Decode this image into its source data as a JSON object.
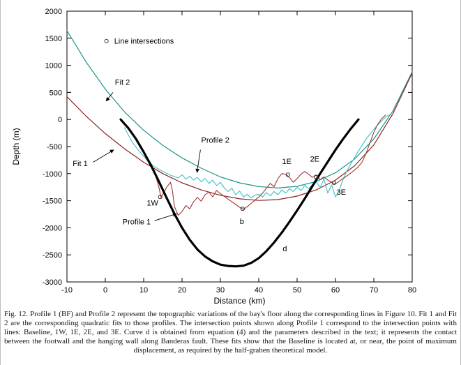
{
  "figure": {
    "caption": "Fig. 12. Profile 1 (BF) and Profile 2 represent the topographic variations of the bay's floor along the corresponding lines in Figure 10. Fit 1 and Fit 2 are the corresponding quadratic fits to those profiles. The intersection points shown along Profile 1 correspond to the intersection points with lines: Baseline, 1W, 1E, 2E, and 3E. Curve d is obtained from equation (4) and the parameters described in the text; it represents the contact between the footwall and the hanging wall along Banderas fault. These fits show that the Baseline is located at, or near, the point of maximum displacement, as required by the half-graben theoretical model."
  },
  "chart_data": {
    "type": "line",
    "title": "",
    "xlabel": "Distance (km)",
    "ylabel": "Depth (m)",
    "xlim": [
      -10,
      80
    ],
    "ylim": [
      -3000,
      2000
    ],
    "xticks": [
      -10,
      0,
      10,
      20,
      30,
      40,
      50,
      60,
      70,
      80
    ],
    "yticks": [
      -3000,
      -2500,
      -2000,
      -1500,
      -1000,
      -500,
      0,
      500,
      1000,
      1500,
      2000
    ],
    "grid": false,
    "legend": {
      "label": "Line intersections",
      "marker": "open-circle",
      "marker_x": 0.3,
      "text_x": 2.3,
      "y": 1450
    },
    "axis_color": "#000000",
    "marker_color": "#333333",
    "series": [
      {
        "name": "Fit 2",
        "color": "#1d9489",
        "width": 1.2,
        "points": [
          [
            -10,
            1640
          ],
          [
            -5,
            1060
          ],
          [
            0,
            560
          ],
          [
            5,
            140
          ],
          [
            10,
            -200
          ],
          [
            15,
            -480
          ],
          [
            20,
            -710
          ],
          [
            25,
            -900
          ],
          [
            30,
            -1060
          ],
          [
            35,
            -1170
          ],
          [
            40,
            -1240
          ],
          [
            45,
            -1265
          ],
          [
            50,
            -1235
          ],
          [
            55,
            -1145
          ],
          [
            60,
            -985
          ],
          [
            65,
            -730
          ],
          [
            70,
            -360
          ],
          [
            75,
            160
          ],
          [
            80,
            880
          ]
        ]
      },
      {
        "name": "Fit 1",
        "color": "#8b2323",
        "width": 1.2,
        "points": [
          [
            -10,
            420
          ],
          [
            -5,
            60
          ],
          [
            0,
            -260
          ],
          [
            5,
            -540
          ],
          [
            10,
            -790
          ],
          [
            15,
            -1000
          ],
          [
            20,
            -1170
          ],
          [
            25,
            -1300
          ],
          [
            30,
            -1400
          ],
          [
            35,
            -1465
          ],
          [
            40,
            -1495
          ],
          [
            45,
            -1480
          ],
          [
            50,
            -1415
          ],
          [
            55,
            -1300
          ],
          [
            60,
            -1120
          ],
          [
            65,
            -855
          ],
          [
            70,
            -470
          ],
          [
            75,
            110
          ],
          [
            80,
            860
          ]
        ]
      },
      {
        "name": "Profile 2",
        "color": "#3fbfc6",
        "width": 1.1,
        "points": [
          [
            5,
            -150
          ],
          [
            7,
            -420
          ],
          [
            9,
            -600
          ],
          [
            11,
            -760
          ],
          [
            13,
            -880
          ],
          [
            15,
            -960
          ],
          [
            17,
            -1030
          ],
          [
            19,
            -1080
          ],
          [
            20,
            -1020
          ],
          [
            21,
            -1100
          ],
          [
            22,
            -1050
          ],
          [
            23,
            -1120
          ],
          [
            24,
            -1070
          ],
          [
            25,
            -1150
          ],
          [
            26,
            -1090
          ],
          [
            27,
            -1180
          ],
          [
            28,
            -1120
          ],
          [
            29,
            -1220
          ],
          [
            30,
            -1160
          ],
          [
            31,
            -1260
          ],
          [
            32,
            -1330
          ],
          [
            33,
            -1270
          ],
          [
            34,
            -1390
          ],
          [
            35,
            -1320
          ],
          [
            36,
            -1430
          ],
          [
            37,
            -1380
          ],
          [
            38,
            -1450
          ],
          [
            39,
            -1400
          ],
          [
            40,
            -1380
          ],
          [
            41,
            -1430
          ],
          [
            42,
            -1350
          ],
          [
            43,
            -1410
          ],
          [
            44,
            -1330
          ],
          [
            45,
            -1390
          ],
          [
            46,
            -1300
          ],
          [
            47,
            -1360
          ],
          [
            48,
            -1280
          ],
          [
            49,
            -1330
          ],
          [
            50,
            -1250
          ],
          [
            51,
            -1310
          ],
          [
            52,
            -1220
          ],
          [
            53,
            -1280
          ],
          [
            54,
            -1200
          ],
          [
            55,
            -1150
          ],
          [
            56,
            -1260
          ],
          [
            57,
            -1100
          ],
          [
            58,
            -1360
          ],
          [
            59,
            -1210
          ],
          [
            60,
            -1430
          ],
          [
            61,
            -1310
          ],
          [
            62,
            -1100
          ],
          [
            63,
            -950
          ],
          [
            64,
            -820
          ],
          [
            65,
            -700
          ],
          [
            66,
            -580
          ],
          [
            67,
            -470
          ],
          [
            68,
            -360
          ],
          [
            69,
            -270
          ],
          [
            70,
            -180
          ],
          [
            71,
            -100
          ],
          [
            72,
            -30
          ],
          [
            73,
            40
          ],
          [
            74,
            90
          ]
        ]
      },
      {
        "name": "Profile 1",
        "color": "#a0352f",
        "width": 1.1,
        "points": [
          [
            13,
            -1000
          ],
          [
            14,
            -1260
          ],
          [
            14.5,
            -1440
          ],
          [
            15,
            -1380
          ],
          [
            16,
            -1250
          ],
          [
            17,
            -1160
          ],
          [
            17.5,
            -1320
          ],
          [
            18,
            -1600
          ],
          [
            19,
            -1770
          ],
          [
            20,
            -1700
          ],
          [
            21,
            -1590
          ],
          [
            22,
            -1650
          ],
          [
            23,
            -1520
          ],
          [
            24,
            -1440
          ],
          [
            25,
            -1510
          ],
          [
            26,
            -1390
          ],
          [
            27,
            -1340
          ],
          [
            28,
            -1430
          ],
          [
            29,
            -1310
          ],
          [
            30,
            -1370
          ],
          [
            31,
            -1420
          ],
          [
            32,
            -1470
          ],
          [
            33,
            -1520
          ],
          [
            34,
            -1570
          ],
          [
            35,
            -1620
          ],
          [
            36,
            -1660
          ],
          [
            37,
            -1610
          ],
          [
            38,
            -1550
          ],
          [
            39,
            -1490
          ],
          [
            40,
            -1430
          ],
          [
            41,
            -1360
          ],
          [
            42,
            -1270
          ],
          [
            43,
            -1180
          ],
          [
            44,
            -1240
          ],
          [
            45,
            -1090
          ],
          [
            46,
            -1000
          ],
          [
            47,
            -1010
          ],
          [
            48,
            -1070
          ],
          [
            49,
            -1160
          ],
          [
            50,
            -1090
          ],
          [
            51,
            -1010
          ],
          [
            52,
            -960
          ],
          [
            53,
            -1010
          ],
          [
            54,
            -1070
          ],
          [
            55,
            -1030
          ],
          [
            56,
            -1110
          ],
          [
            57,
            -1060
          ],
          [
            58,
            -1120
          ],
          [
            59,
            -1160
          ],
          [
            60,
            -1190
          ],
          [
            61,
            -1140
          ],
          [
            62,
            -1090
          ],
          [
            63,
            -1040
          ],
          [
            64,
            -990
          ],
          [
            65,
            -930
          ],
          [
            66,
            -870
          ],
          [
            67,
            -780
          ],
          [
            68,
            -620
          ],
          [
            69,
            -430
          ],
          [
            70,
            -240
          ],
          [
            71,
            -90
          ],
          [
            72,
            10
          ],
          [
            73,
            80
          ]
        ]
      },
      {
        "name": "Curve d",
        "color": "#000000",
        "width": 3.2,
        "points": [
          [
            4,
            0
          ],
          [
            6,
            -160
          ],
          [
            8,
            -360
          ],
          [
            10,
            -600
          ],
          [
            12,
            -860
          ],
          [
            14,
            -1150
          ],
          [
            16,
            -1450
          ],
          [
            18,
            -1740
          ],
          [
            20,
            -2000
          ],
          [
            22,
            -2220
          ],
          [
            24,
            -2400
          ],
          [
            26,
            -2530
          ],
          [
            28,
            -2620
          ],
          [
            30,
            -2680
          ],
          [
            32,
            -2705
          ],
          [
            34,
            -2712
          ],
          [
            36,
            -2700
          ],
          [
            38,
            -2650
          ],
          [
            40,
            -2560
          ],
          [
            42,
            -2430
          ],
          [
            44,
            -2270
          ],
          [
            46,
            -2090
          ],
          [
            48,
            -1890
          ],
          [
            50,
            -1680
          ],
          [
            52,
            -1460
          ],
          [
            54,
            -1230
          ],
          [
            56,
            -1000
          ],
          [
            58,
            -780
          ],
          [
            60,
            -560
          ],
          [
            62,
            -360
          ],
          [
            64,
            -170
          ],
          [
            66,
            0
          ]
        ]
      }
    ],
    "markers": [
      {
        "label": "1W",
        "x": 14.3,
        "y": -1430
      },
      {
        "label": "b",
        "x": 35.8,
        "y": -1650
      },
      {
        "label": "1E",
        "x": 47.6,
        "y": -1020
      },
      {
        "label": "2E",
        "x": 54.9,
        "y": -1060
      },
      {
        "label": "3E",
        "x": 59.6,
        "y": -1170
      }
    ],
    "point_labels": [
      {
        "text": "1W",
        "x": 12.3,
        "y": -1590
      },
      {
        "text": "b",
        "x": 35.6,
        "y": -1930
      },
      {
        "text": "1E",
        "x": 47.3,
        "y": -820
      },
      {
        "text": "2E",
        "x": 54.6,
        "y": -780
      },
      {
        "text": "3E",
        "x": 61.5,
        "y": -1390
      },
      {
        "text": "d",
        "x": 46.8,
        "y": -2430
      }
    ],
    "annotations": [
      {
        "text": "Fit 2",
        "tx": 2.5,
        "ty": 640,
        "x1": 2.0,
        "y1": 500,
        "x2": 0.2,
        "y2": 340
      },
      {
        "text": "Fit 1",
        "tx": -8.5,
        "ty": -860,
        "x1": -3.2,
        "y1": -790,
        "x2": 2.2,
        "y2": -560
      },
      {
        "text": "Profile 2",
        "tx": 25.0,
        "ty": -430,
        "x1": 24.8,
        "y1": -560,
        "x2": 23.9,
        "y2": -980
      },
      {
        "text": "Profile 1",
        "tx": 4.5,
        "ty": -1940,
        "x1": 12.8,
        "y1": -1870,
        "x2": 18.6,
        "y2": -1740
      }
    ]
  }
}
